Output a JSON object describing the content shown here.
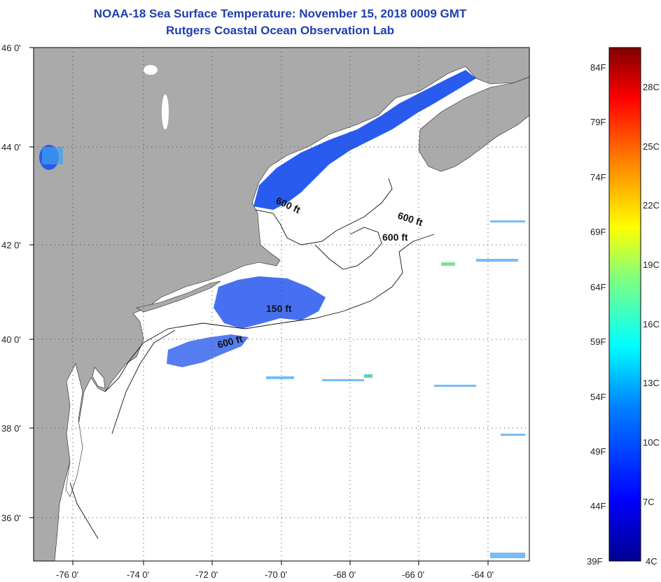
{
  "title": "NOAA-18 Sea Surface Temperature:  November 15, 2018 0009 GMT",
  "subtitle": "Rutgers Coastal Ocean Observation Lab",
  "lat_labels": [
    "46 0'",
    "44 0'",
    "42 0'",
    "40 0'",
    "38 0'",
    "36 0'"
  ],
  "lon_labels": [
    "-76 0'",
    "-74 0'",
    "-72 0'",
    "-70 0'",
    "-68 0'",
    "-66 0'",
    "-64 0'"
  ],
  "contour_labels": [
    "600 ft",
    "600 ft",
    "600 ft",
    "150 ft",
    "600 ft"
  ],
  "colorbar": {
    "f_labels": [
      "84F",
      "79F",
      "74F",
      "69F",
      "64F",
      "59F",
      "54F",
      "49F",
      "44F",
      "39F"
    ],
    "c_labels": [
      "28C",
      "25C",
      "22C",
      "19C",
      "16C",
      "13C",
      "10C",
      "7C",
      "4C"
    ]
  },
  "colors": {
    "title": "#1f3fae",
    "land": "#aaaaaa",
    "ocean": "#ffffff",
    "sst_cold": "#1a3fe0",
    "grid": "#333333"
  }
}
